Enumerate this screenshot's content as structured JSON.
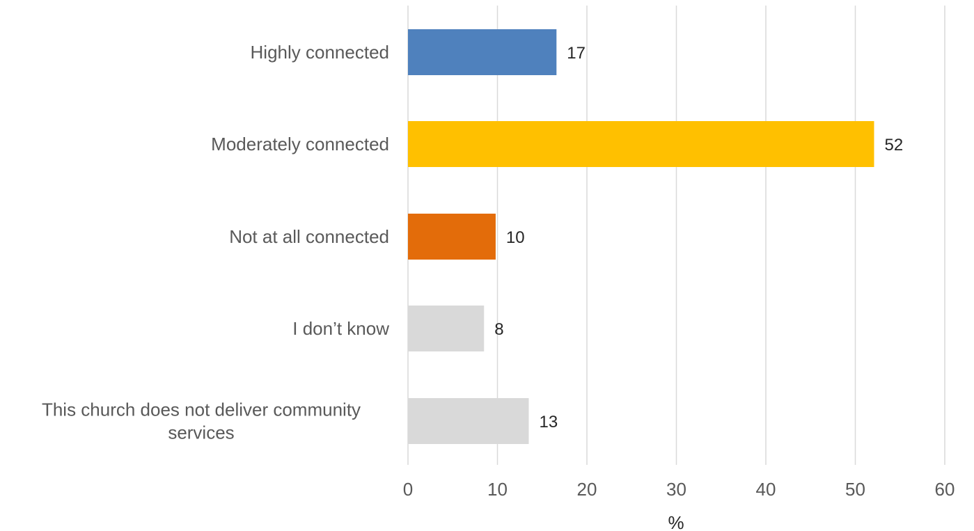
{
  "chart_data": {
    "type": "bar",
    "orientation": "horizontal",
    "categories": [
      "Highly connected",
      "Moderately connected",
      "Not at all connected",
      "I don’t know",
      "This church does not deliver community services"
    ],
    "category_lines": [
      [
        "Highly connected"
      ],
      [
        "Moderately connected"
      ],
      [
        "Not at all connected"
      ],
      [
        "I don’t know"
      ],
      [
        "This church does not deliver community",
        "services"
      ]
    ],
    "values": [
      16.6,
      52.1,
      9.8,
      8.5,
      13.5
    ],
    "value_labels": [
      "17",
      "52",
      "10",
      "8",
      "13"
    ],
    "colors": [
      "#4f81bd",
      "#ffc000",
      "#e36c0a",
      "#d9d9d9",
      "#d9d9d9"
    ],
    "xlabel": "%",
    "xlim": [
      0,
      60
    ],
    "xticks": [
      0,
      10,
      20,
      30,
      40,
      50,
      60
    ],
    "xtick_labels": [
      "0",
      "10",
      "20",
      "30",
      "40",
      "50",
      "60"
    ],
    "grid": true,
    "legend": "none"
  }
}
